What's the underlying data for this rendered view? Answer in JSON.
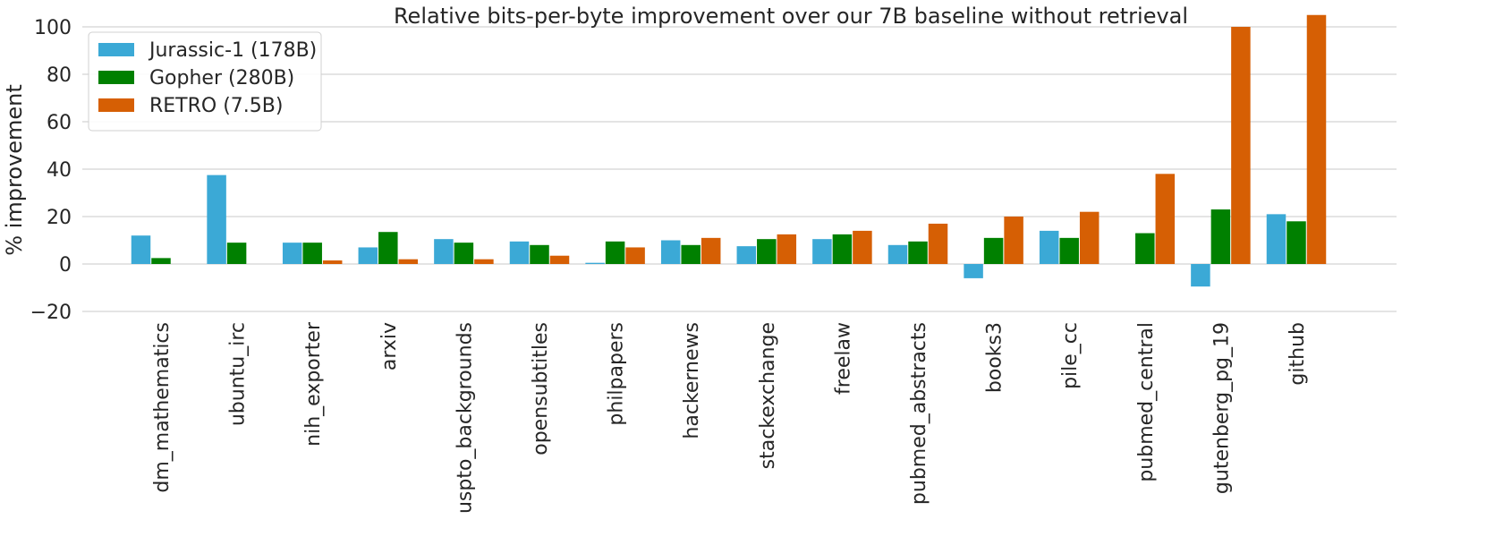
{
  "chart_data": {
    "type": "bar",
    "title": "Relative bits-per-byte improvement over our 7B baseline without retrieval",
    "xlabel": "",
    "ylabel": "% improvement",
    "ylim": [
      -20,
      100
    ],
    "yticks": [
      -20,
      0,
      20,
      40,
      60,
      80,
      100
    ],
    "ytick_labels": [
      "−20",
      "0",
      "20",
      "40",
      "60",
      "80",
      "100"
    ],
    "grid": true,
    "legend_position": "top-left",
    "categories": [
      "dm_mathematics",
      "ubuntu_irc",
      "nih_exporter",
      "arxiv",
      "uspto_backgrounds",
      "opensubtitles",
      "philpapers",
      "hackernews",
      "stackexchange",
      "freelaw",
      "pubmed_abstracts",
      "books3",
      "pile_cc",
      "pubmed_central",
      "gutenberg_pg_19",
      "github"
    ],
    "series": [
      {
        "name": "Jurassic-1 (178B)",
        "color": "#3ba9d6",
        "values": [
          12,
          37.5,
          9,
          7,
          10.5,
          9.5,
          0.5,
          10,
          7.5,
          10.5,
          8,
          -6,
          14,
          0,
          -9.5,
          21
        ]
      },
      {
        "name": "Gopher (280B)",
        "color": "#008000",
        "values": [
          2.5,
          9,
          9,
          13.5,
          9,
          8,
          9.5,
          8,
          10.5,
          12.5,
          9.5,
          11,
          11,
          13,
          23,
          18
        ]
      },
      {
        "name": "RETRO (7.5B)",
        "color": "#d65f04",
        "values": [
          0,
          0,
          1.5,
          2,
          2,
          3.5,
          7,
          11,
          12.5,
          14,
          17,
          20,
          22,
          38,
          100,
          105
        ]
      }
    ]
  }
}
